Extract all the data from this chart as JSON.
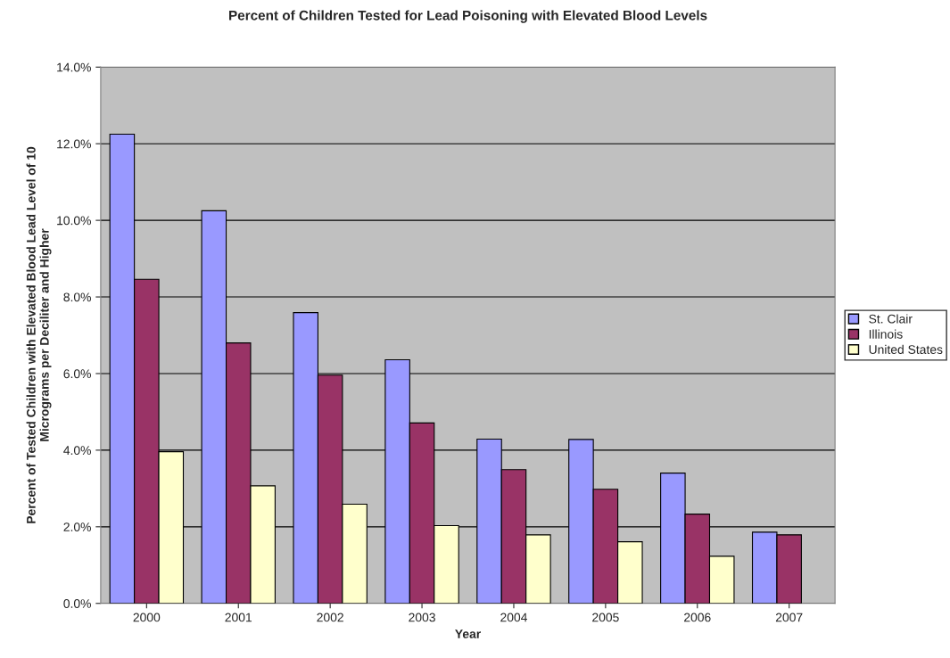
{
  "chart_data": {
    "type": "bar",
    "title": "Percent of Children Tested for Lead Poisoning with Elevated Blood Levels",
    "xlabel": "Year",
    "ylabel": "Percent of Tested Children with Elevated Blood Lead Level of 10 Micrograms per Deciliter and Higher",
    "categories": [
      "2000",
      "2001",
      "2002",
      "2003",
      "2004",
      "2005",
      "2006",
      "2007"
    ],
    "series": [
      {
        "name": "St. Clair",
        "color": "#9999ff",
        "values": [
          12.25,
          10.25,
          7.59,
          6.36,
          4.29,
          4.28,
          3.4,
          1.86
        ]
      },
      {
        "name": "Illinois",
        "color": "#993366",
        "values": [
          8.46,
          6.8,
          5.96,
          4.71,
          3.49,
          2.98,
          2.33,
          1.79
        ]
      },
      {
        "name": "United States",
        "color": "#ffffcc",
        "values": [
          3.96,
          3.07,
          2.59,
          2.03,
          1.79,
          1.61,
          1.23,
          null
        ]
      }
    ],
    "ylim": [
      0,
      14
    ],
    "yticks": [
      {
        "value": 0,
        "label": "0.0%"
      },
      {
        "value": 2,
        "label": "2.0%"
      },
      {
        "value": 4,
        "label": "4.0%"
      },
      {
        "value": 6,
        "label": "6.0%"
      },
      {
        "value": 8,
        "label": "8.0%"
      },
      {
        "value": 10,
        "label": "10.0%"
      },
      {
        "value": 12,
        "label": "12.0%"
      },
      {
        "value": 14,
        "label": "14.0%"
      }
    ],
    "grid": "y",
    "legend": "right"
  }
}
